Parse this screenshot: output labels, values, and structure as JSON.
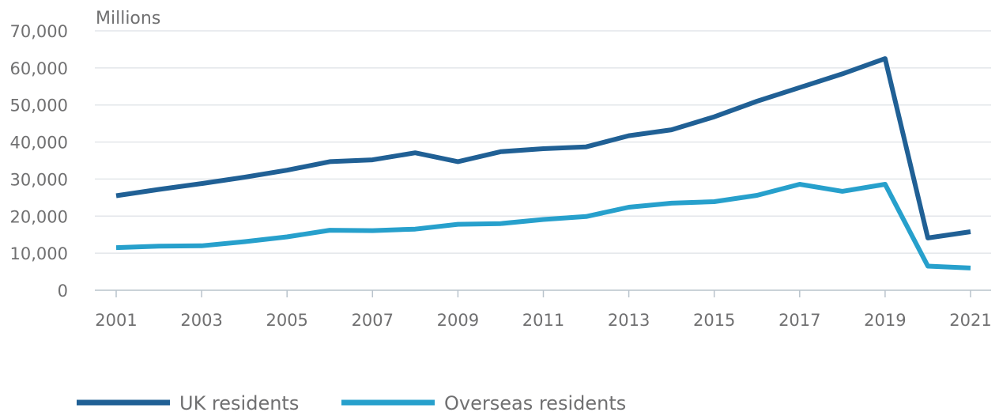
{
  "chart_data": {
    "type": "line",
    "title": "",
    "xlabel": "",
    "ylabel": "Millions",
    "xlim": [
      2001,
      2021
    ],
    "ylim": [
      0,
      70000
    ],
    "x": [
      2001,
      2002,
      2003,
      2004,
      2005,
      2006,
      2007,
      2008,
      2009,
      2010,
      2011,
      2012,
      2013,
      2014,
      2015,
      2016,
      2017,
      2018,
      2019,
      2020,
      2021
    ],
    "x_tick_labels": [
      "2001",
      "2003",
      "2005",
      "2007",
      "2009",
      "2011",
      "2013",
      "2015",
      "2017",
      "2019",
      "2021"
    ],
    "y_ticks": [
      0,
      10000,
      20000,
      30000,
      40000,
      50000,
      60000,
      70000
    ],
    "y_tick_labels": [
      "0",
      "10,000",
      "20,000",
      "30,000",
      "40,000",
      "50,000",
      "60,000",
      "70,000"
    ],
    "grid": "horizontal",
    "legend_position": "bottom-left",
    "series": [
      {
        "name": "UK residents",
        "color": "#206095",
        "values": [
          25500,
          27200,
          28800,
          30500,
          32400,
          34700,
          35200,
          37100,
          34700,
          37400,
          38200,
          38700,
          41700,
          43300,
          46800,
          51000,
          54700,
          58400,
          62500,
          14100,
          15800
        ]
      },
      {
        "name": "Overseas residents",
        "color": "#27a0cc",
        "values": [
          11500,
          11900,
          12000,
          13100,
          14400,
          16200,
          16100,
          16500,
          17800,
          18000,
          19100,
          19900,
          22400,
          23500,
          23900,
          25600,
          28600,
          26700,
          28600,
          6500,
          6000
        ]
      }
    ]
  }
}
